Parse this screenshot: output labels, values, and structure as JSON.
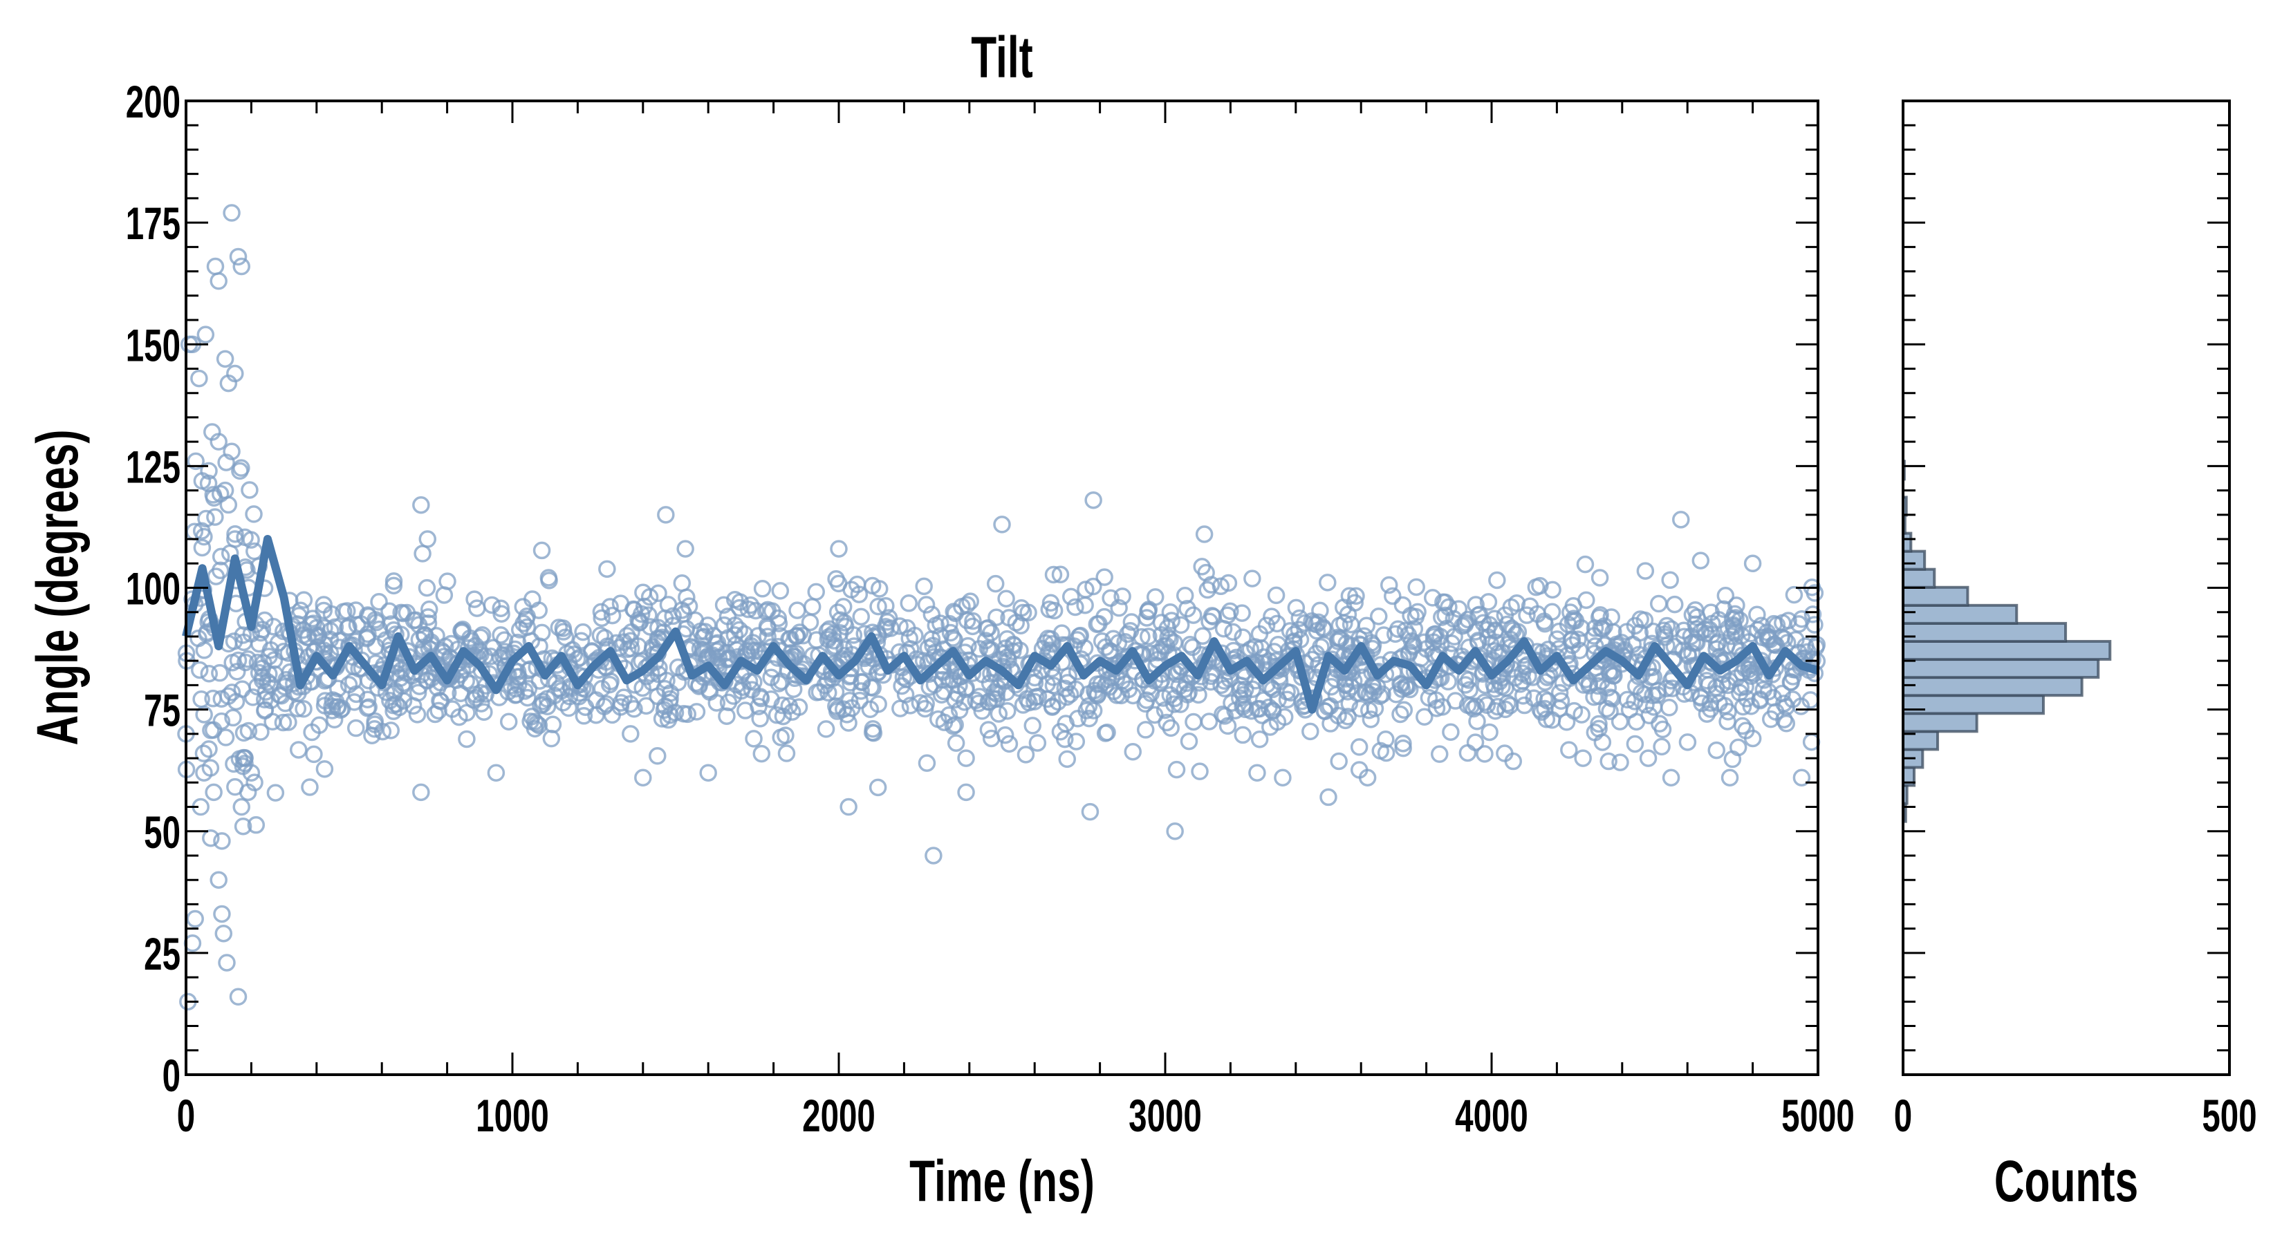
{
  "chart_data": [
    {
      "type": "scatter",
      "title": "Tilt",
      "xlabel": "Time (ns)",
      "ylabel": "Angle (degrees)",
      "xlim": [
        0,
        5000
      ],
      "ylim": [
        0,
        200
      ],
      "xticks": [
        0,
        1000,
        2000,
        3000,
        4000,
        5000
      ],
      "yticks": [
        0,
        25,
        50,
        75,
        100,
        125,
        150,
        175,
        200
      ],
      "xtick_labels": [
        "0",
        "1000",
        "2000",
        "3000",
        "4000",
        "5000"
      ],
      "ytick_labels": [
        "0",
        "25",
        "50",
        "75",
        "100",
        "125",
        "150",
        "175",
        "200"
      ],
      "grid": false,
      "scatter_color": "#7f9fc4",
      "line_color": "#4677aa",
      "scatter_points": [
        [
          6,
          15
        ],
        [
          20,
          27
        ],
        [
          28,
          32
        ],
        [
          45,
          55
        ],
        [
          55,
          62
        ],
        [
          75,
          63
        ],
        [
          85,
          58
        ],
        [
          90,
          166
        ],
        [
          100,
          163
        ],
        [
          110,
          33
        ],
        [
          115,
          29
        ],
        [
          125,
          23
        ],
        [
          110,
          48
        ],
        [
          140,
          177
        ],
        [
          160,
          168
        ],
        [
          170,
          166
        ],
        [
          150,
          144
        ],
        [
          130,
          142
        ],
        [
          60,
          152
        ],
        [
          40,
          143
        ],
        [
          120,
          147
        ],
        [
          100,
          130
        ],
        [
          140,
          128
        ],
        [
          30,
          126
        ],
        [
          70,
          124
        ],
        [
          165,
          124
        ],
        [
          80,
          132
        ],
        [
          20,
          150
        ],
        [
          10,
          150
        ],
        [
          150,
          110
        ],
        [
          120,
          120
        ],
        [
          180,
          65
        ],
        [
          170,
          55
        ],
        [
          175,
          51
        ],
        [
          160,
          16
        ],
        [
          100,
          40
        ],
        [
          0,
          70
        ],
        [
          200,
          62
        ],
        [
          190,
          58
        ],
        [
          720,
          117
        ],
        [
          740,
          110
        ],
        [
          1470,
          115
        ],
        [
          1530,
          108
        ],
        [
          2000,
          108
        ],
        [
          2500,
          113
        ],
        [
          2780,
          118
        ],
        [
          3120,
          111
        ],
        [
          4580,
          114
        ],
        [
          4800,
          105
        ],
        [
          1400,
          61
        ],
        [
          1600,
          62
        ],
        [
          2030,
          55
        ],
        [
          2120,
          59
        ],
        [
          2290,
          45
        ],
        [
          2390,
          58
        ],
        [
          2770,
          54
        ],
        [
          3030,
          50
        ],
        [
          3360,
          61
        ],
        [
          3500,
          57
        ],
        [
          3620,
          61
        ],
        [
          4550,
          61
        ],
        [
          4730,
          61
        ],
        [
          4950,
          61
        ],
        [
          720,
          58
        ],
        [
          950,
          62
        ],
        [
          2270,
          64
        ],
        [
          2390,
          65
        ],
        [
          1840,
          66
        ],
        [
          4040,
          66
        ],
        [
          4280,
          65
        ],
        [
          4480,
          65
        ]
      ],
      "scatter_bulk": [
        {
          "t_range": [
            0,
            220
          ],
          "n": 90,
          "mean": 92,
          "sd": 18
        },
        {
          "t_range": [
            220,
            5000
          ],
          "n": 1900,
          "mean": 84,
          "sd": 7.5
        }
      ],
      "running_mean": {
        "t_step": 50,
        "values": [
          90,
          104,
          88,
          106,
          92,
          110,
          98,
          80,
          86,
          82,
          88,
          84,
          80,
          90,
          83,
          86,
          81,
          87,
          84,
          79,
          85,
          88,
          82,
          86,
          80,
          84,
          87,
          81,
          83,
          86,
          91,
          82,
          84,
          80,
          85,
          83,
          88,
          84,
          81,
          86,
          82,
          85,
          90,
          83,
          86,
          81,
          84,
          87,
          82,
          85,
          83,
          80,
          86,
          84,
          88,
          82,
          85,
          83,
          87,
          81,
          84,
          86,
          82,
          89,
          83,
          85,
          81,
          84,
          87,
          75,
          86,
          83,
          88,
          82,
          85,
          84,
          80,
          86,
          83,
          87,
          82,
          85,
          89,
          83,
          86,
          81,
          84,
          87,
          85,
          82,
          88,
          84,
          80,
          86,
          83,
          85,
          88,
          82,
          87,
          84,
          83
        ]
      }
    },
    {
      "type": "bar",
      "orientation": "horizontal",
      "xlabel": "Counts",
      "xlim": [
        0,
        500
      ],
      "ylim": [
        0,
        200
      ],
      "xticks": [
        0,
        500
      ],
      "xtick_labels": [
        "0",
        "500"
      ],
      "bin_width": 3.7,
      "bin_centers": [
        53.85,
        57.55,
        61.25,
        64.95,
        68.65,
        72.35,
        76.05,
        79.75,
        83.45,
        87.15,
        90.85,
        94.55,
        98.25,
        101.95,
        105.65,
        109.35,
        113.05,
        116.75,
        120.45,
        124.15
      ],
      "counts": [
        4,
        6,
        17,
        30,
        53,
        113,
        215,
        274,
        299,
        317,
        249,
        174,
        99,
        48,
        33,
        12,
        3,
        5,
        0,
        2
      ],
      "fill_color": "#a0b8d2",
      "edge_color": "#3a4a5c"
    }
  ]
}
